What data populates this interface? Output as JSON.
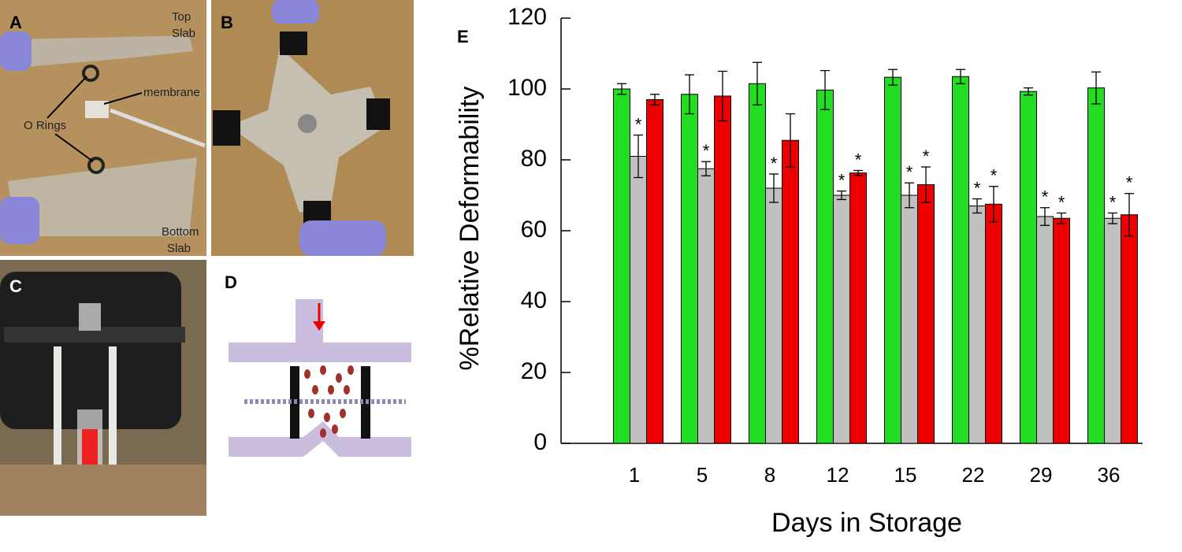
{
  "panels": [
    {
      "label": "A",
      "notes": [
        "Top",
        "Slab",
        "membrane",
        "O Rings",
        "Bottom",
        "Slab"
      ]
    },
    {
      "label": "B"
    },
    {
      "label": "C"
    },
    {
      "label": "D"
    }
  ],
  "chart_data": {
    "type": "bar",
    "panel_label": "E",
    "y_label": "%Relative Deformability",
    "x_label": "Days in Storage",
    "categories": [
      "1",
      "5",
      "8",
      "12",
      "15",
      "22",
      "29",
      "36"
    ],
    "series": [
      {
        "color": "#22dd22",
        "values": [
          100,
          98.5,
          101.5,
          99.7,
          103.3,
          103.5,
          99.3,
          100.3
        ],
        "errors": [
          1.5,
          5.5,
          6,
          5.5,
          2.2,
          2,
          1,
          4.5
        ],
        "markers": [
          null,
          null,
          null,
          null,
          null,
          null,
          null,
          null
        ]
      },
      {
        "color": "#c0c0c0",
        "values": [
          81,
          77.5,
          72,
          70,
          70,
          67,
          64,
          63.5
        ],
        "errors": [
          6,
          2,
          4,
          1.2,
          3.5,
          2,
          2.5,
          1.5
        ],
        "markers": [
          "*",
          "*",
          "*",
          "*",
          "*",
          "*",
          "*",
          "*"
        ]
      },
      {
        "color": "#ee0000",
        "values": [
          97,
          98,
          85.5,
          76.3,
          73,
          67.5,
          63.5,
          64.5
        ],
        "errors": [
          1.5,
          7,
          7.5,
          0.7,
          5,
          5,
          1.5,
          6
        ],
        "markers": [
          null,
          null,
          null,
          "*",
          "*",
          "*",
          "*",
          "*"
        ]
      }
    ],
    "ylim": [
      0,
      120
    ],
    "yticks": [
      0,
      20,
      40,
      60,
      80,
      100,
      120
    ]
  }
}
